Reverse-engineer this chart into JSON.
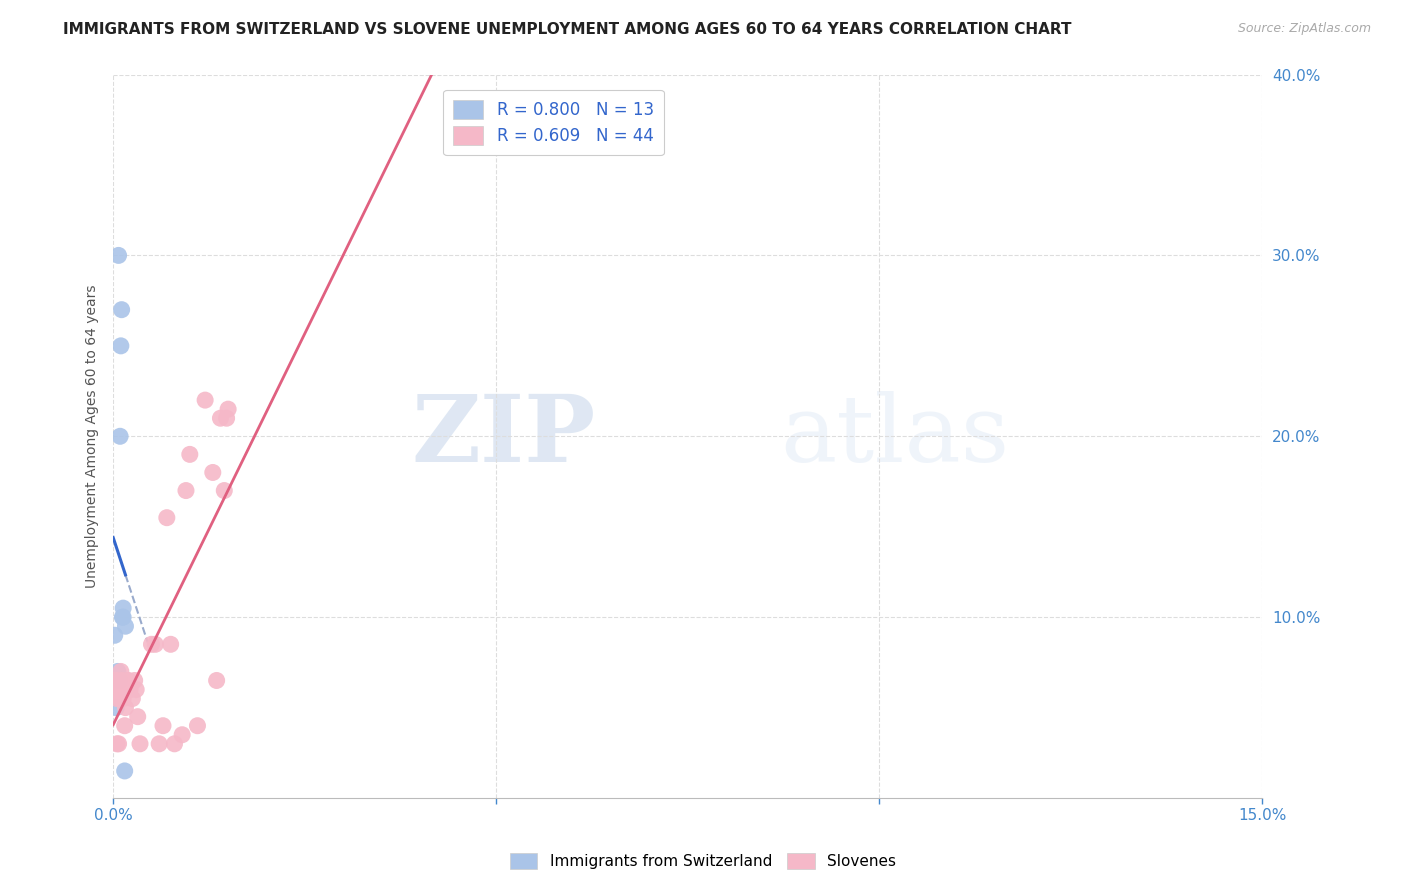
{
  "title": "IMMIGRANTS FROM SWITZERLAND VS SLOVENE UNEMPLOYMENT AMONG AGES 60 TO 64 YEARS CORRELATION CHART",
  "source": "Source: ZipAtlas.com",
  "ylabel": "Unemployment Among Ages 60 to 64 years",
  "xlim": [
    0,
    0.15
  ],
  "ylim": [
    0,
    0.4
  ],
  "xticks": [
    0.0,
    0.05,
    0.1,
    0.15
  ],
  "yticks": [
    0.1,
    0.2,
    0.3,
    0.4
  ],
  "background_color": "#ffffff",
  "grid_color": "#dddddd",
  "watermark_zip": "ZIP",
  "watermark_atlas": "atlas",
  "swiss_color": "#aac4e8",
  "swiss_line_color": "#3366cc",
  "swiss_dash_color": "#99aacc",
  "slovene_color": "#f5b8c8",
  "slovene_line_color": "#e06080",
  "swiss_R": "0.800",
  "swiss_N": "13",
  "slovene_R": "0.609",
  "slovene_N": "44",
  "legend_swiss_label": "Immigrants from Switzerland",
  "legend_slovene_label": "Slovenes",
  "swiss_x": [
    0.0002,
    0.0004,
    0.0006,
    0.0007,
    0.0008,
    0.0009,
    0.001,
    0.0011,
    0.0012,
    0.0013,
    0.0013,
    0.0015,
    0.0016
  ],
  "swiss_y": [
    0.09,
    0.05,
    0.07,
    0.3,
    0.065,
    0.2,
    0.25,
    0.27,
    0.1,
    0.105,
    0.1,
    0.015,
    0.095
  ],
  "slovene_x": [
    0.0001,
    0.0002,
    0.0003,
    0.0004,
    0.0005,
    0.0005,
    0.0006,
    0.0007,
    0.0007,
    0.0008,
    0.0009,
    0.001,
    0.0011,
    0.0012,
    0.0013,
    0.0014,
    0.0015,
    0.0016,
    0.0018,
    0.002,
    0.0022,
    0.0025,
    0.0028,
    0.003,
    0.0032,
    0.0035,
    0.005,
    0.0055,
    0.006,
    0.0065,
    0.007,
    0.0075,
    0.008,
    0.009,
    0.0095,
    0.01,
    0.011,
    0.012,
    0.013,
    0.0135,
    0.014,
    0.0145,
    0.0148,
    0.015
  ],
  "slovene_y": [
    0.065,
    0.065,
    0.06,
    0.065,
    0.055,
    0.03,
    0.06,
    0.06,
    0.03,
    0.06,
    0.055,
    0.07,
    0.065,
    0.06,
    0.055,
    0.06,
    0.04,
    0.05,
    0.065,
    0.065,
    0.06,
    0.055,
    0.065,
    0.06,
    0.045,
    0.03,
    0.085,
    0.085,
    0.03,
    0.04,
    0.155,
    0.085,
    0.03,
    0.035,
    0.17,
    0.19,
    0.04,
    0.22,
    0.18,
    0.065,
    0.21,
    0.17,
    0.21,
    0.215
  ]
}
